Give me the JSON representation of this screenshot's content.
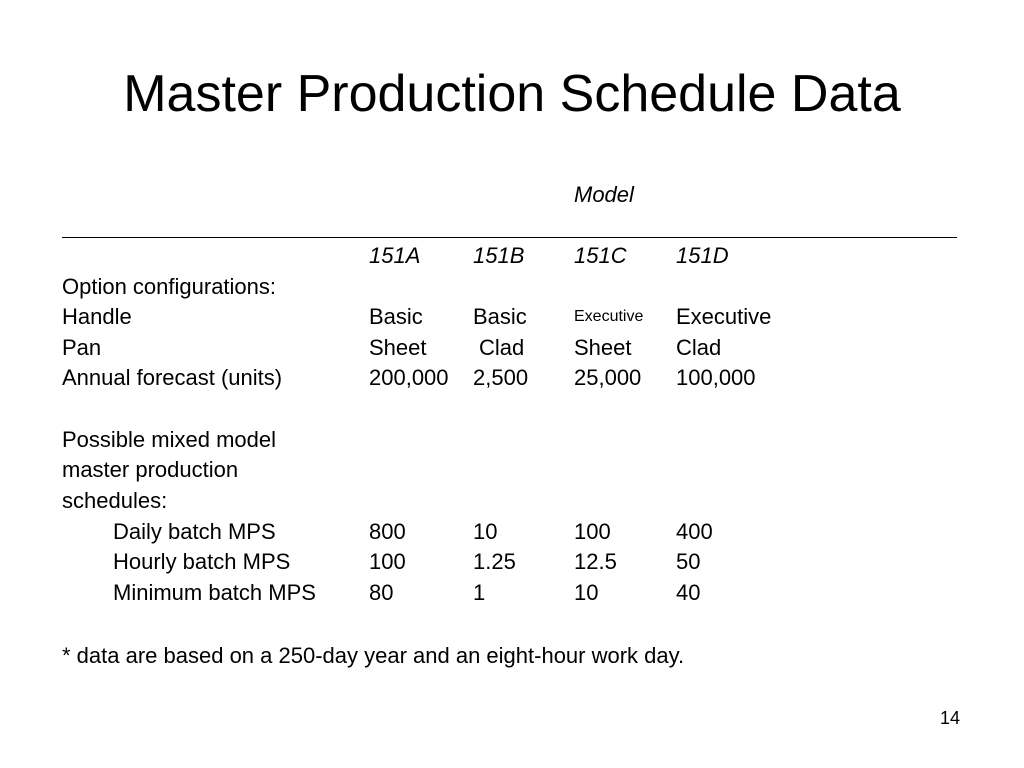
{
  "slide": {
    "title": "Master Production Schedule Data",
    "model_label": "Model",
    "page_number": "14"
  },
  "table": {
    "headers": [
      "151A",
      "151B",
      "151C",
      "151D"
    ],
    "rows": [
      {
        "label": "Option configurations:",
        "values": [
          "",
          "",
          "",
          ""
        ]
      },
      {
        "label": "Handle",
        "values": [
          "Basic",
          "Basic",
          "Executive",
          "Executive"
        ]
      },
      {
        "label": "Pan",
        "values": [
          "Sheet",
          "Clad",
          "Sheet",
          "Clad"
        ]
      },
      {
        "label": "Annual forecast (units)",
        "values": [
          "200,000",
          "2,500",
          "25,000",
          "100,000"
        ]
      },
      {
        "label": "",
        "values": [
          "",
          "",
          "",
          ""
        ]
      },
      {
        "label": "Possible mixed model",
        "values": [
          "",
          "",
          "",
          ""
        ]
      },
      {
        "label": "master production",
        "values": [
          "",
          "",
          "",
          ""
        ]
      },
      {
        "label": "schedules:",
        "values": [
          "",
          "",
          "",
          ""
        ]
      },
      {
        "label": "Daily batch MPS",
        "values": [
          "800",
          "10",
          "100",
          "400"
        ]
      },
      {
        "label": "Hourly batch MPS",
        "values": [
          "100",
          "1.25",
          "12.5",
          "50"
        ]
      },
      {
        "label": "Minimum batch MPS",
        "values": [
          "80",
          "1",
          "10",
          "40"
        ]
      }
    ]
  },
  "footnote": "* data are based on a 250-day year and an eight-hour work day."
}
